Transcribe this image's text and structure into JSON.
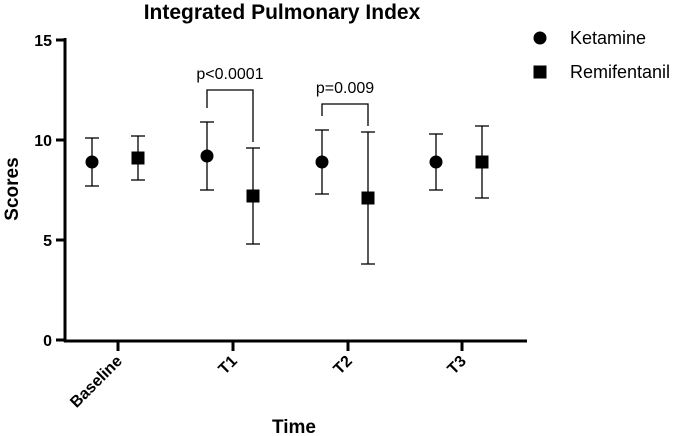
{
  "chart_data": {
    "type": "scatter",
    "title": "Integrated Pulmonary Index",
    "xlabel": "Time",
    "ylabel": "Scores",
    "categories": [
      "Baseline",
      "T1",
      "T2",
      "T3"
    ],
    "ylim": [
      0,
      15
    ],
    "yticks": [
      0,
      5,
      10,
      15
    ],
    "grid": false,
    "legend_position": "top-right",
    "series": [
      {
        "name": "Ketamine",
        "marker": "circle",
        "values": [
          8.9,
          9.2,
          8.9,
          8.9
        ],
        "error_low": [
          7.7,
          7.5,
          7.3,
          7.5
        ],
        "error_high": [
          10.1,
          10.9,
          10.5,
          10.3
        ]
      },
      {
        "name": "Remifentanil",
        "marker": "square",
        "values": [
          9.1,
          7.2,
          7.1,
          8.9
        ],
        "error_low": [
          8.0,
          4.8,
          3.8,
          7.1
        ],
        "error_high": [
          10.2,
          9.6,
          10.4,
          10.7
        ]
      }
    ],
    "annotations": [
      {
        "category": "T1",
        "text": "p<0.0001",
        "y": 12.5
      },
      {
        "category": "T2",
        "text": "p=0.009",
        "y": 11.8
      }
    ]
  }
}
